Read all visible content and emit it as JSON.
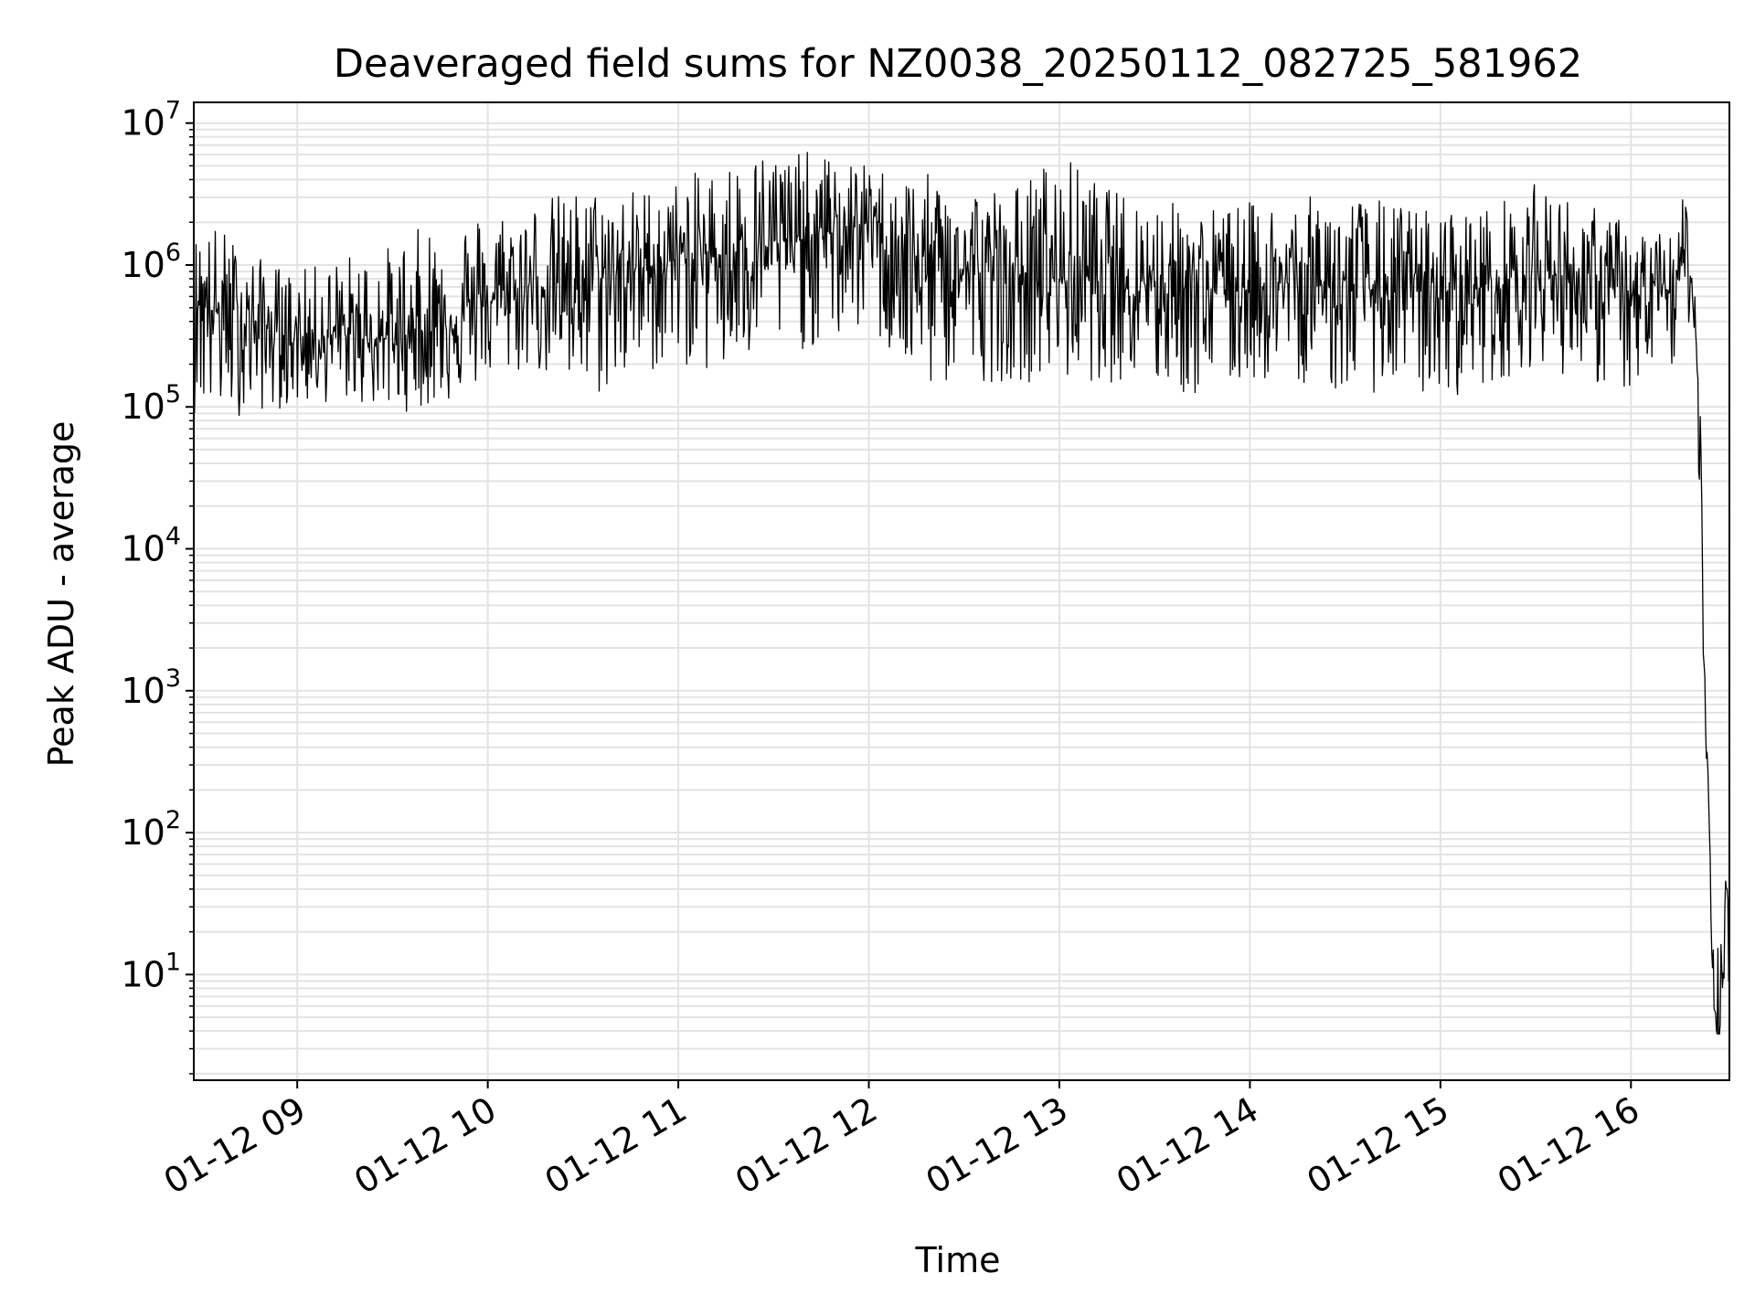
{
  "chart_data": {
    "type": "line",
    "title": "Deaveraged field sums for NZ0038_20250112_082725_581962",
    "xlabel": "Time",
    "ylabel": "Peak ADU - average",
    "yscale": "log",
    "ylim": [
      1.8,
      14000000
    ],
    "xlim": [
      "2025-01-12 08:27:25",
      "2025-01-12 16:31:00"
    ],
    "grid": true,
    "line_color": "#000000",
    "grid_color": "#e3e3e3",
    "x_tick_values": [
      "2025-01-12 09:00",
      "2025-01-12 10:00",
      "2025-01-12 11:00",
      "2025-01-12 12:00",
      "2025-01-12 13:00",
      "2025-01-12 14:00",
      "2025-01-12 15:00",
      "2025-01-12 16:00"
    ],
    "x_tick_labels": [
      "01-12 09",
      "01-12 10",
      "01-12 11",
      "01-12 12",
      "01-12 13",
      "01-12 14",
      "01-12 15",
      "01-12 16"
    ],
    "y_tick_values": [
      10,
      100,
      1000,
      10000,
      100000,
      1000000,
      10000000
    ],
    "y_tick_labels": [
      {
        "base": "10",
        "exp": "1"
      },
      {
        "base": "10",
        "exp": "2"
      },
      {
        "base": "10",
        "exp": "3"
      },
      {
        "base": "10",
        "exp": "4"
      },
      {
        "base": "10",
        "exp": "5"
      },
      {
        "base": "10",
        "exp": "6"
      },
      {
        "base": "10",
        "exp": "7"
      }
    ],
    "series": [
      {
        "x": [
          "2025-01-12 08:27:25",
          "2025-01-12 08:35",
          "2025-01-12 08:45",
          "2025-01-12 09:00",
          "2025-01-12 09:15",
          "2025-01-12 09:30",
          "2025-01-12 09:45",
          "2025-01-12 10:00",
          "2025-01-12 10:15",
          "2025-01-12 10:30",
          "2025-01-12 10:45",
          "2025-01-12 11:00",
          "2025-01-12 11:15",
          "2025-01-12 11:30",
          "2025-01-12 11:45",
          "2025-01-12 12:00",
          "2025-01-12 12:15",
          "2025-01-12 12:30",
          "2025-01-12 12:45",
          "2025-01-12 13:00",
          "2025-01-12 13:15",
          "2025-01-12 13:30",
          "2025-01-12 13:45",
          "2025-01-12 14:00",
          "2025-01-12 14:15",
          "2025-01-12 14:30",
          "2025-01-12 14:45",
          "2025-01-12 15:00",
          "2025-01-12 15:15",
          "2025-01-12 15:30",
          "2025-01-12 15:45",
          "2025-01-12 16:00",
          "2025-01-12 16:10",
          "2025-01-12 16:18",
          "2025-01-12 16:20",
          "2025-01-12 16:22",
          "2025-01-12 16:23",
          "2025-01-12 16:24",
          "2025-01-12 16:25",
          "2025-01-12 16:26",
          "2025-01-12 16:27",
          "2025-01-12 16:28",
          "2025-01-12 16:29",
          "2025-01-12 16:30",
          "2025-01-12 16:31"
        ],
        "y": [
          700000,
          450000,
          400000,
          300000,
          320000,
          300000,
          380000,
          550000,
          700000,
          800000,
          900000,
          1100000,
          1200000,
          1400000,
          1600000,
          2000000,
          1000000,
          900000,
          850000,
          800000,
          850000,
          800000,
          700000,
          700000,
          750000,
          700000,
          650000,
          650000,
          700000,
          900000,
          800000,
          600000,
          550000,
          1200000,
          500000,
          60000,
          1500,
          400,
          60,
          10,
          3.8,
          3.8,
          20,
          40,
          15
        ],
        "low": [
          90000,
          80000,
          90000,
          100000,
          110000,
          90000,
          100000,
          150000,
          180000,
          100000,
          150000,
          200000,
          150000,
          250000,
          250000,
          350000,
          120000,
          150000,
          150000,
          150000,
          150000,
          130000,
          110000,
          150000,
          150000,
          120000,
          130000,
          110000,
          140000,
          200000,
          150000,
          120000,
          100000,
          400000,
          300000,
          10000,
          800,
          200,
          30,
          5,
          3.8,
          3.8,
          5,
          10,
          8
        ],
        "high": [
          1600000,
          2000000,
          1200000,
          900000,
          1200000,
          1400000,
          2300000,
          2400000,
          3000000,
          3500000,
          3500000,
          4000000,
          5500000,
          7000000,
          6000000,
          5000000,
          4500000,
          4000000,
          3500000,
          6500000,
          3500000,
          3000000,
          2600000,
          2800000,
          3000000,
          3200000,
          2800000,
          2500000,
          2600000,
          3800000,
          2800000,
          2000000,
          1800000,
          3300000,
          800000,
          100000,
          2500,
          700,
          100,
          30,
          25,
          30,
          60,
          60,
          30
        ]
      }
    ]
  }
}
